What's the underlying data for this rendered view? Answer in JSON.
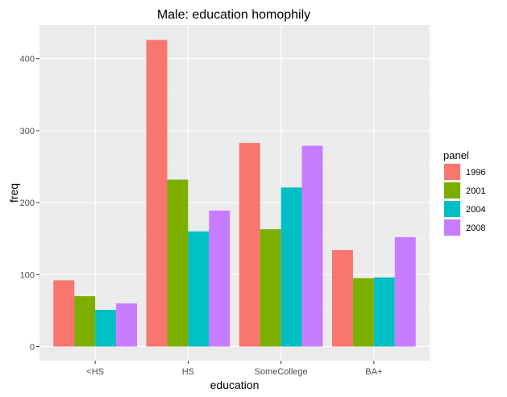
{
  "chart_data": {
    "type": "bar",
    "title": "Male: education homophily",
    "xlabel": "education",
    "ylabel": "freq",
    "categories": [
      "<HS",
      "HS",
      "SomeCollege",
      "BA+"
    ],
    "ylim": [
      0,
      460
    ],
    "yticks": [
      0,
      100,
      200,
      300,
      400
    ],
    "grid": true,
    "legend": {
      "title": "panel",
      "position": "right"
    },
    "series": [
      {
        "name": "1996",
        "color": "#F8766D",
        "values": [
          92,
          426,
          283,
          134
        ]
      },
      {
        "name": "2001",
        "color": "#7CAE00",
        "values": [
          70,
          232,
          163,
          95
        ]
      },
      {
        "name": "2004",
        "color": "#00BFC4",
        "values": [
          51,
          160,
          221,
          96
        ]
      },
      {
        "name": "2008",
        "color": "#C77CFF",
        "values": [
          60,
          189,
          279,
          152
        ]
      }
    ]
  }
}
